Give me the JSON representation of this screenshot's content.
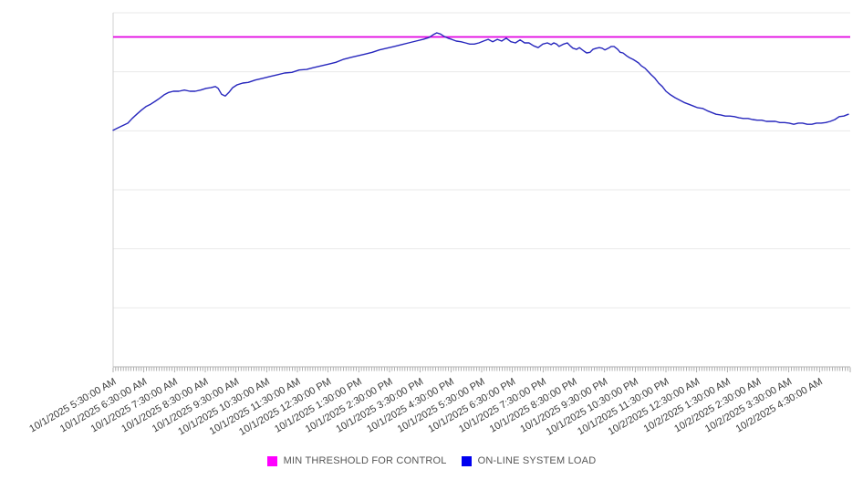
{
  "chart_data": {
    "type": "line",
    "title": "",
    "grid": true,
    "legend_position": "bottom-center",
    "x_axis": {
      "tick_labels": [
        "10/1/2025 5:30:00 AM",
        "10/1/2025 6:30:00 AM",
        "10/1/2025 7:30:00 AM",
        "10/1/2025 8:30:00 AM",
        "10/1/2025 9:30:00 AM",
        "10/1/2025 10:30:00 AM",
        "10/1/2025 11:30:00 AM",
        "10/1/2025 12:30:00 PM",
        "10/1/2025 1:30:00 PM",
        "10/1/2025 2:30:00 PM",
        "10/1/2025 3:30:00 PM",
        "10/1/2025 4:30:00 PM",
        "10/1/2025 5:30:00 PM",
        "10/1/2025 6:30:00 PM",
        "10/1/2025 7:30:00 PM",
        "10/1/2025 8:30:00 PM",
        "10/1/2025 9:30:00 PM",
        "10/1/2025 10:30:00 PM",
        "10/1/2025 11:30:00 PM",
        "10/2/2025 12:30:00 AM",
        "10/2/2025 1:30:00 AM",
        "10/2/2025 2:30:00 AM",
        "10/2/2025 3:30:00 AM",
        "10/2/2025 4:30:00 AM"
      ],
      "hours_total": 24,
      "minor_ticks_per_hour": 12,
      "label_rotation_deg": -30
    },
    "y_axis": {
      "labels_visible": false,
      "gridline_count": 7,
      "units_min": 0,
      "units_max": 6
    },
    "series": [
      {
        "name": "MIN THRESHOLD FOR CONTROL",
        "type": "constant-line",
        "color": "#e100e1",
        "value_units": 5.59
      },
      {
        "name": "ON-LINE SYSTEM LOAD",
        "type": "line",
        "color": "#2727bd",
        "points_t_hours_v_units": [
          [
            0,
            4.01
          ],
          [
            0.12,
            4.04
          ],
          [
            0.24,
            4.07
          ],
          [
            0.36,
            4.1
          ],
          [
            0.48,
            4.13
          ],
          [
            0.62,
            4.21
          ],
          [
            0.77,
            4.28
          ],
          [
            0.92,
            4.35
          ],
          [
            1.07,
            4.41
          ],
          [
            1.22,
            4.45
          ],
          [
            1.37,
            4.5
          ],
          [
            1.51,
            4.55
          ],
          [
            1.66,
            4.61
          ],
          [
            1.81,
            4.65
          ],
          [
            1.96,
            4.67
          ],
          [
            2.14,
            4.67
          ],
          [
            2.32,
            4.69
          ],
          [
            2.5,
            4.67
          ],
          [
            2.67,
            4.67
          ],
          [
            2.85,
            4.69
          ],
          [
            3.03,
            4.72
          ],
          [
            3.18,
            4.73
          ],
          [
            3.33,
            4.75
          ],
          [
            3.42,
            4.72
          ],
          [
            3.53,
            4.62
          ],
          [
            3.65,
            4.59
          ],
          [
            3.77,
            4.65
          ],
          [
            3.89,
            4.73
          ],
          [
            4.04,
            4.78
          ],
          [
            4.22,
            4.81
          ],
          [
            4.4,
            4.82
          ],
          [
            4.63,
            4.86
          ],
          [
            4.87,
            4.89
          ],
          [
            5.11,
            4.92
          ],
          [
            5.35,
            4.95
          ],
          [
            5.58,
            4.98
          ],
          [
            5.82,
            4.99
          ],
          [
            6.06,
            5.03
          ],
          [
            6.3,
            5.04
          ],
          [
            6.53,
            5.07
          ],
          [
            6.77,
            5.1
          ],
          [
            7.01,
            5.13
          ],
          [
            7.25,
            5.16
          ],
          [
            7.49,
            5.21
          ],
          [
            7.72,
            5.24
          ],
          [
            7.96,
            5.27
          ],
          [
            8.2,
            5.3
          ],
          [
            8.44,
            5.33
          ],
          [
            8.67,
            5.37
          ],
          [
            8.91,
            5.4
          ],
          [
            9.15,
            5.43
          ],
          [
            9.39,
            5.46
          ],
          [
            9.62,
            5.49
          ],
          [
            9.86,
            5.52
          ],
          [
            10.1,
            5.55
          ],
          [
            10.28,
            5.58
          ],
          [
            10.43,
            5.63
          ],
          [
            10.54,
            5.66
          ],
          [
            10.66,
            5.64
          ],
          [
            10.78,
            5.6
          ],
          [
            10.9,
            5.57
          ],
          [
            11.02,
            5.55
          ],
          [
            11.17,
            5.52
          ],
          [
            11.32,
            5.51
          ],
          [
            11.47,
            5.49
          ],
          [
            11.61,
            5.47
          ],
          [
            11.76,
            5.47
          ],
          [
            11.91,
            5.49
          ],
          [
            12.06,
            5.52
          ],
          [
            12.21,
            5.55
          ],
          [
            12.36,
            5.51
          ],
          [
            12.51,
            5.55
          ],
          [
            12.65,
            5.52
          ],
          [
            12.8,
            5.57
          ],
          [
            12.95,
            5.51
          ],
          [
            13.1,
            5.49
          ],
          [
            13.25,
            5.54
          ],
          [
            13.4,
            5.49
          ],
          [
            13.54,
            5.49
          ],
          [
            13.69,
            5.44
          ],
          [
            13.84,
            5.41
          ],
          [
            13.99,
            5.47
          ],
          [
            14.14,
            5.49
          ],
          [
            14.26,
            5.46
          ],
          [
            14.35,
            5.49
          ],
          [
            14.44,
            5.47
          ],
          [
            14.52,
            5.43
          ],
          [
            14.67,
            5.47
          ],
          [
            14.79,
            5.49
          ],
          [
            14.88,
            5.44
          ],
          [
            14.97,
            5.4
          ],
          [
            15.09,
            5.38
          ],
          [
            15.18,
            5.41
          ],
          [
            15.33,
            5.35
          ],
          [
            15.42,
            5.32
          ],
          [
            15.53,
            5.33
          ],
          [
            15.62,
            5.38
          ],
          [
            15.74,
            5.4
          ],
          [
            15.83,
            5.41
          ],
          [
            15.92,
            5.4
          ],
          [
            16.01,
            5.37
          ],
          [
            16.13,
            5.4
          ],
          [
            16.22,
            5.43
          ],
          [
            16.31,
            5.43
          ],
          [
            16.43,
            5.38
          ],
          [
            16.51,
            5.33
          ],
          [
            16.6,
            5.32
          ],
          [
            16.72,
            5.27
          ],
          [
            16.81,
            5.24
          ],
          [
            16.93,
            5.21
          ],
          [
            17.02,
            5.18
          ],
          [
            17.11,
            5.15
          ],
          [
            17.2,
            5.1
          ],
          [
            17.32,
            5.06
          ],
          [
            17.41,
            5.01
          ],
          [
            17.52,
            4.95
          ],
          [
            17.64,
            4.89
          ],
          [
            17.76,
            4.81
          ],
          [
            17.88,
            4.75
          ],
          [
            18,
            4.67
          ],
          [
            18.15,
            4.61
          ],
          [
            18.3,
            4.56
          ],
          [
            18.45,
            4.52
          ],
          [
            18.59,
            4.48
          ],
          [
            18.74,
            4.45
          ],
          [
            18.89,
            4.42
          ],
          [
            19.04,
            4.39
          ],
          [
            19.19,
            4.38
          ],
          [
            19.34,
            4.34
          ],
          [
            19.49,
            4.31
          ],
          [
            19.63,
            4.28
          ],
          [
            19.78,
            4.27
          ],
          [
            19.93,
            4.25
          ],
          [
            20.08,
            4.25
          ],
          [
            20.23,
            4.24
          ],
          [
            20.38,
            4.22
          ],
          [
            20.52,
            4.21
          ],
          [
            20.67,
            4.21
          ],
          [
            20.82,
            4.19
          ],
          [
            20.97,
            4.18
          ],
          [
            21.12,
            4.18
          ],
          [
            21.27,
            4.16
          ],
          [
            21.41,
            4.16
          ],
          [
            21.56,
            4.16
          ],
          [
            21.71,
            4.14
          ],
          [
            21.86,
            4.14
          ],
          [
            22.01,
            4.13
          ],
          [
            22.16,
            4.11
          ],
          [
            22.31,
            4.13
          ],
          [
            22.45,
            4.13
          ],
          [
            22.6,
            4.11
          ],
          [
            22.75,
            4.11
          ],
          [
            22.9,
            4.13
          ],
          [
            23.05,
            4.13
          ],
          [
            23.2,
            4.14
          ],
          [
            23.35,
            4.16
          ],
          [
            23.5,
            4.19
          ],
          [
            23.64,
            4.24
          ],
          [
            23.79,
            4.25
          ],
          [
            23.94,
            4.28
          ]
        ]
      }
    ]
  },
  "legend": {
    "items": [
      {
        "label": "MIN THRESHOLD FOR CONTROL",
        "color": "#ff00ff"
      },
      {
        "label": "ON-LINE SYSTEM LOAD",
        "color": "#0000f0"
      }
    ]
  }
}
